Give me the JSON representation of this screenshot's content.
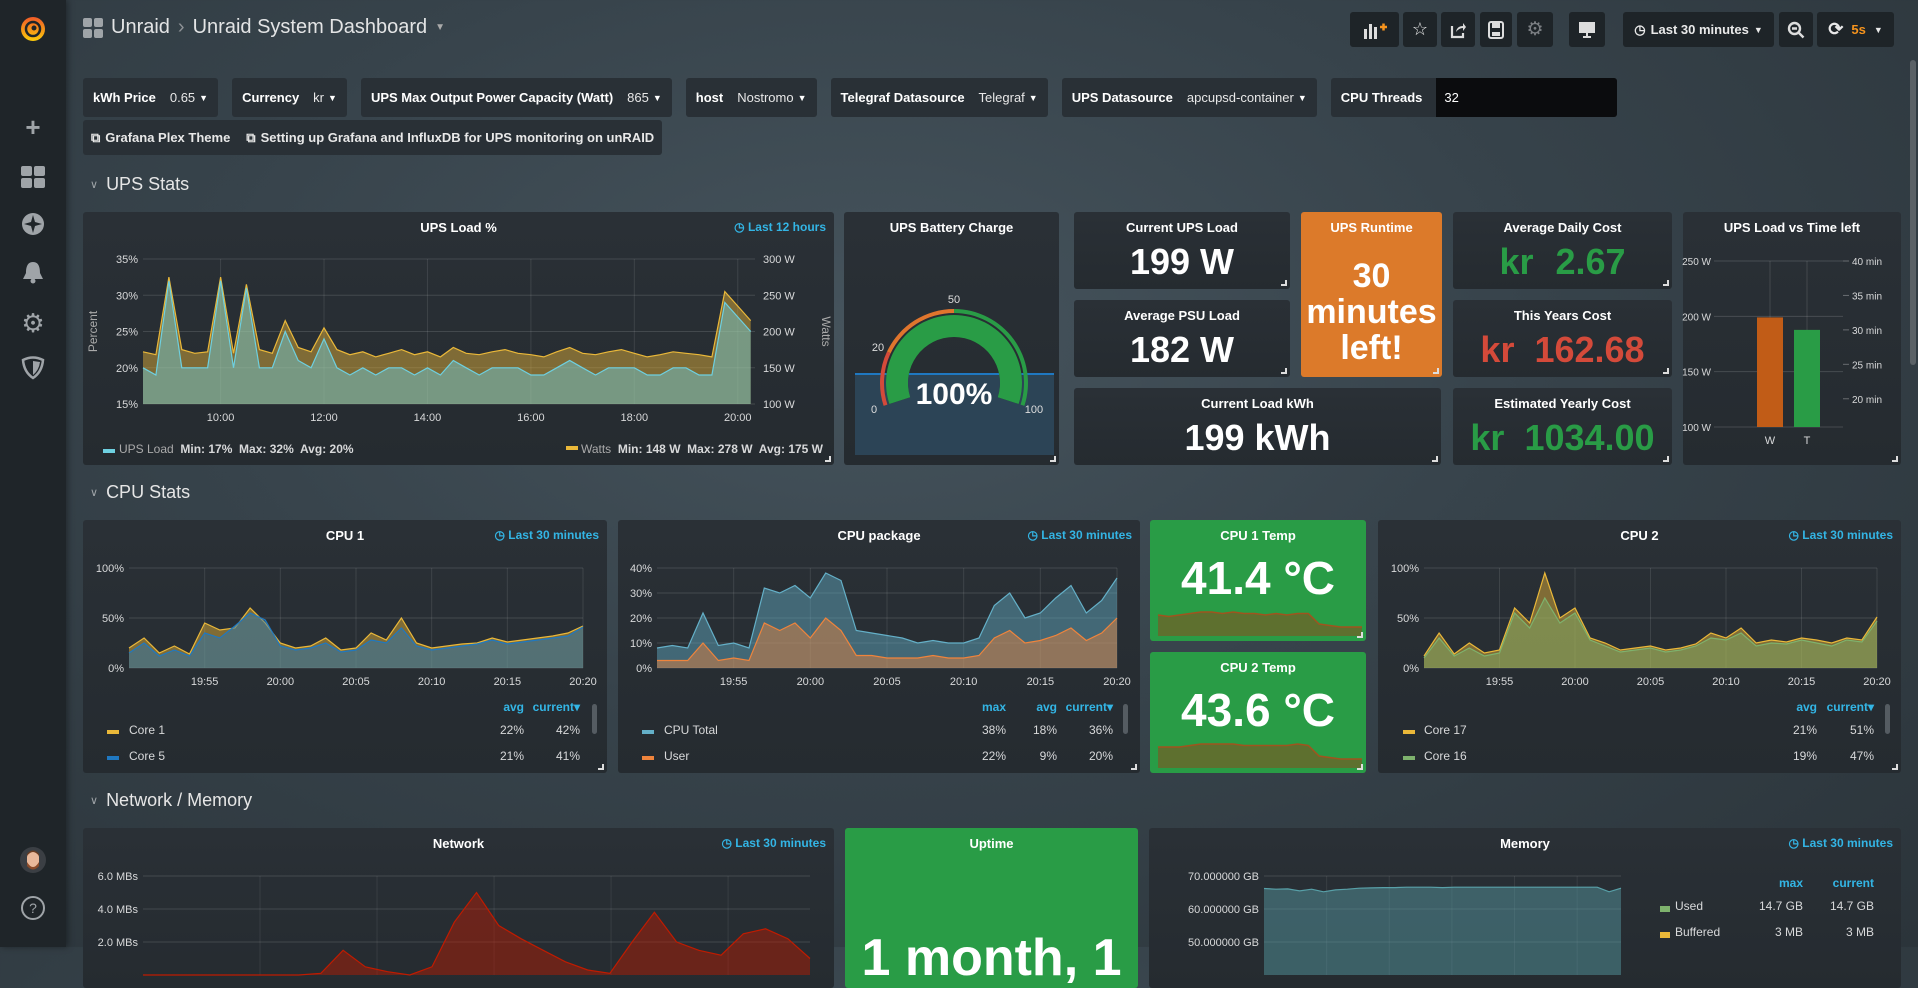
{
  "topbar": {
    "breadcrumb_parent": "Unraid",
    "separator": "›",
    "title": "Unraid System Dashboard",
    "time_range": "Last 30 minutes",
    "refresh_interval": "5s"
  },
  "icons": {
    "logo": "grafana-logo",
    "add": "plus-icon",
    "dashboards": "grid-icon",
    "explore": "compass-icon",
    "alerting": "bell-icon",
    "configuration": "gear-icon",
    "server_admin": "shield-icon",
    "help": "help-icon"
  },
  "variables": [
    {
      "label": "kWh Price",
      "value": "0.65"
    },
    {
      "label": "Currency",
      "value": "kr"
    },
    {
      "label": "UPS Max Output Power Capacity (Watt)",
      "value": "865"
    },
    {
      "label": "host",
      "value": "Nostromo"
    },
    {
      "label": "Telegraf Datasource",
      "value": "Telegraf"
    },
    {
      "label": "UPS Datasource",
      "value": "apcupsd-container"
    },
    {
      "label": "CPU Threads",
      "value": "32"
    }
  ],
  "links": [
    "Grafana Plex Theme",
    "Setting up Grafana and InfluxDB for UPS monitoring on unRAID"
  ],
  "rows": [
    "UPS Stats",
    "CPU Stats",
    "Network / Memory"
  ],
  "colors": {
    "green": "#299c46",
    "red": "#d44a3a",
    "orange": "#e0752d",
    "blue": "#33b5e5"
  },
  "panels": {
    "ups_load": {
      "title": "UPS Load %",
      "time": "Last 12 hours",
      "legend": [
        {
          "name": "UPS Load",
          "stats": "Min: 17%  Max: 32%  Avg: 20%"
        },
        {
          "name": "Watts",
          "stats": "Min: 148 W  Max: 278 W  Avg: 175 W"
        }
      ]
    },
    "battery": {
      "title": "UPS Battery Charge",
      "value": "100%",
      "percent": 100,
      "scale_labels": [
        "0",
        "20",
        "50",
        "100"
      ]
    },
    "current_ups_load": {
      "title": "Current UPS Load",
      "value": "199 W"
    },
    "avg_psu_load": {
      "title": "Average PSU Load",
      "value": "182 W"
    },
    "current_load_kwh": {
      "title": "Current Load kWh",
      "value": "199 kWh"
    },
    "ups_runtime": {
      "title": "UPS Runtime",
      "value_lines": [
        "30",
        "minutes",
        "left!"
      ]
    },
    "avg_daily_cost": {
      "title": "Average Daily Cost",
      "prefix": "kr",
      "value": "2.67"
    },
    "this_years_cost": {
      "title": "This Years Cost",
      "prefix": "kr",
      "value": "162.68"
    },
    "est_yearly_cost": {
      "title": "Estimated Yearly Cost",
      "prefix": "kr",
      "value": "1034.00"
    },
    "ups_load_vs_time": {
      "title": "UPS Load vs Time left"
    },
    "cpu1": {
      "title": "CPU 1",
      "time": "Last 30 minutes",
      "cols": [
        "avg",
        "current"
      ],
      "legend": [
        {
          "name": "Core 1",
          "color": "#eab839",
          "avg": "22%",
          "current": "42%"
        },
        {
          "name": "Core 5",
          "color": "#1f78c1",
          "avg": "21%",
          "current": "41%"
        }
      ]
    },
    "cpu_package": {
      "title": "CPU package",
      "time": "Last 30 minutes",
      "cols": [
        "max",
        "avg",
        "current"
      ],
      "legend": [
        {
          "name": "CPU Total",
          "color": "#64b0c8",
          "max": "38%",
          "avg": "18%",
          "current": "36%"
        },
        {
          "name": "User",
          "color": "#ef843c",
          "max": "22%",
          "avg": "9%",
          "current": "20%"
        }
      ]
    },
    "cpu1_temp": {
      "title": "CPU 1 Temp",
      "value": "41.4 °C",
      "sparkline": [
        44,
        43,
        44,
        45,
        46,
        46,
        45,
        46,
        45,
        45,
        44,
        45,
        44,
        45,
        45,
        38,
        37,
        36,
        36,
        36
      ]
    },
    "cpu2_temp": {
      "title": "CPU 2 Temp",
      "value": "43.6 °C",
      "sparkline": [
        44,
        44,
        44,
        45,
        46,
        46,
        46,
        46,
        45,
        45,
        45,
        45,
        45,
        46,
        45,
        38,
        37,
        36,
        36,
        36
      ]
    },
    "cpu2": {
      "title": "CPU 2",
      "time": "Last 30 minutes",
      "cols": [
        "avg",
        "current"
      ],
      "legend": [
        {
          "name": "Core 17",
          "color": "#eab839",
          "avg": "21%",
          "current": "51%"
        },
        {
          "name": "Core 16",
          "color": "#7eb26d",
          "avg": "19%",
          "current": "47%"
        }
      ]
    },
    "network": {
      "title": "Network",
      "time": "Last 30 minutes"
    },
    "uptime": {
      "title": "Uptime",
      "value": "1 month, 1"
    },
    "memory": {
      "title": "Memory",
      "time": "Last 30 minutes",
      "cols": [
        "max",
        "current"
      ],
      "legend": [
        {
          "name": "Used",
          "color": "#7eb26d",
          "max": "14.7 GB",
          "current": "14.7 GB"
        },
        {
          "name": "Buffered",
          "color": "#eab839",
          "max": "3 MB",
          "current": "3 MB"
        }
      ]
    }
  },
  "chart_data": [
    {
      "type": "area",
      "panel": "UPS Load %",
      "xlim": [
        "08:30",
        "20:20"
      ],
      "xticks": [
        "10:00",
        "12:00",
        "14:00",
        "16:00",
        "18:00",
        "20:00"
      ],
      "ylabel": "Percent",
      "ylim": [
        15,
        35
      ],
      "yticks": [
        15,
        20,
        25,
        30,
        35
      ],
      "ytick_labels": [
        "15%",
        "20%",
        "25%",
        "30%",
        "35%"
      ],
      "y2label": "Watts",
      "y2lim": [
        100,
        300
      ],
      "y2ticks": [
        100,
        150,
        200,
        250,
        300
      ],
      "y2tick_labels": [
        "100 W",
        "150 W",
        "200 W",
        "250 W",
        "300 W"
      ],
      "x": [
        "08:30",
        "08:45",
        "09:00",
        "09:15",
        "09:30",
        "09:45",
        "10:00",
        "10:15",
        "10:30",
        "10:45",
        "11:00",
        "11:15",
        "11:30",
        "11:45",
        "12:00",
        "12:15",
        "12:30",
        "12:45",
        "13:00",
        "13:15",
        "13:30",
        "13:45",
        "14:00",
        "14:15",
        "14:30",
        "14:45",
        "15:00",
        "15:15",
        "15:30",
        "15:45",
        "16:00",
        "16:15",
        "16:30",
        "16:45",
        "17:00",
        "17:15",
        "17:30",
        "17:45",
        "18:00",
        "18:15",
        "18:30",
        "18:45",
        "19:00",
        "19:15",
        "19:30",
        "19:45",
        "20:00",
        "20:15"
      ],
      "series": [
        {
          "name": "Watts",
          "axis": "right",
          "color": "#eab839",
          "values": [
            172,
            168,
            275,
            175,
            170,
            172,
            275,
            170,
            265,
            175,
            170,
            215,
            178,
            172,
            205,
            175,
            168,
            172,
            165,
            170,
            175,
            168,
            172,
            165,
            178,
            170,
            168,
            172,
            175,
            170,
            168,
            165,
            172,
            178,
            170,
            168,
            172,
            175,
            170,
            165,
            168,
            172,
            170,
            168,
            165,
            255,
            235,
            215
          ]
        },
        {
          "name": "UPS Load",
          "axis": "left",
          "color": "#6ed0e0",
          "values": [
            20,
            19,
            32,
            20,
            20,
            20,
            32,
            20,
            31,
            20,
            20,
            25,
            21,
            20,
            24,
            20,
            19,
            20,
            19,
            20,
            20,
            19,
            20,
            19,
            21,
            20,
            19,
            20,
            20,
            20,
            19,
            19,
            20,
            21,
            20,
            19,
            20,
            20,
            20,
            19,
            19,
            20,
            20,
            19,
            19,
            29,
            27,
            25
          ]
        }
      ]
    },
    {
      "type": "area",
      "panel": "CPU 1",
      "xlim": [
        "19:50",
        "20:20"
      ],
      "xticks": [
        "19:55",
        "20:00",
        "20:05",
        "20:10",
        "20:15",
        "20:20"
      ],
      "ylim": [
        0,
        100
      ],
      "yticks": [
        0,
        50,
        100
      ],
      "ytick_labels": [
        "0%",
        "50%",
        "100%"
      ],
      "x": [
        "19:50",
        "19:51",
        "19:52",
        "19:53",
        "19:54",
        "19:55",
        "19:56",
        "19:57",
        "19:58",
        "19:59",
        "20:00",
        "20:01",
        "20:02",
        "20:03",
        "20:04",
        "20:05",
        "20:06",
        "20:07",
        "20:08",
        "20:09",
        "20:10",
        "20:11",
        "20:12",
        "20:13",
        "20:14",
        "20:15",
        "20:16",
        "20:17",
        "20:18",
        "20:19",
        "20:20"
      ],
      "series": [
        {
          "name": "Core 1",
          "color": "#eab839",
          "values": [
            20,
            30,
            15,
            22,
            14,
            45,
            38,
            40,
            60,
            45,
            25,
            20,
            22,
            30,
            18,
            20,
            35,
            28,
            50,
            25,
            20,
            22,
            24,
            25,
            30,
            26,
            28,
            30,
            32,
            35,
            42
          ]
        },
        {
          "name": "Core 5",
          "color": "#1f78c1",
          "values": [
            15,
            25,
            12,
            18,
            12,
            35,
            30,
            42,
            55,
            48,
            22,
            18,
            20,
            25,
            16,
            18,
            28,
            25,
            40,
            22,
            18,
            20,
            22,
            24,
            28,
            24,
            26,
            28,
            30,
            32,
            41
          ]
        }
      ]
    },
    {
      "type": "area",
      "panel": "CPU package",
      "xlim": [
        "19:50",
        "20:20"
      ],
      "xticks": [
        "19:55",
        "20:00",
        "20:05",
        "20:10",
        "20:15",
        "20:20"
      ],
      "ylim": [
        0,
        40
      ],
      "yticks": [
        0,
        10,
        20,
        30,
        40
      ],
      "ytick_labels": [
        "0%",
        "10%",
        "20%",
        "30%",
        "40%"
      ],
      "x": [
        "19:50",
        "19:51",
        "19:52",
        "19:53",
        "19:54",
        "19:55",
        "19:56",
        "19:57",
        "19:58",
        "19:59",
        "20:00",
        "20:01",
        "20:02",
        "20:03",
        "20:04",
        "20:05",
        "20:06",
        "20:07",
        "20:08",
        "20:09",
        "20:10",
        "20:11",
        "20:12",
        "20:13",
        "20:14",
        "20:15",
        "20:16",
        "20:17",
        "20:18",
        "20:19",
        "20:20"
      ],
      "series": [
        {
          "name": "CPU Total",
          "color": "#64b0c8",
          "values": [
            8,
            9,
            8,
            22,
            9,
            10,
            8,
            32,
            30,
            33,
            28,
            38,
            35,
            15,
            14,
            13,
            12,
            10,
            11,
            10,
            10,
            12,
            25,
            30,
            20,
            22,
            28,
            33,
            22,
            27,
            36
          ]
        },
        {
          "name": "User",
          "color": "#ef843c",
          "values": [
            3,
            3,
            3,
            10,
            3,
            4,
            3,
            18,
            15,
            18,
            12,
            20,
            15,
            5,
            5,
            4,
            4,
            4,
            5,
            4,
            4,
            5,
            12,
            15,
            10,
            11,
            13,
            16,
            11,
            14,
            20
          ]
        }
      ]
    },
    {
      "type": "area",
      "panel": "CPU 2",
      "xlim": [
        "19:50",
        "20:20"
      ],
      "xticks": [
        "19:55",
        "20:00",
        "20:05",
        "20:10",
        "20:15",
        "20:20"
      ],
      "ylim": [
        0,
        100
      ],
      "yticks": [
        0,
        50,
        100
      ],
      "ytick_labels": [
        "0%",
        "50%",
        "100%"
      ],
      "x": [
        "19:50",
        "19:51",
        "19:52",
        "19:53",
        "19:54",
        "19:55",
        "19:56",
        "19:57",
        "19:58",
        "19:59",
        "20:00",
        "20:01",
        "20:02",
        "20:03",
        "20:04",
        "20:05",
        "20:06",
        "20:07",
        "20:08",
        "20:09",
        "20:10",
        "20:11",
        "20:12",
        "20:13",
        "20:14",
        "20:15",
        "20:16",
        "20:17",
        "20:18",
        "20:19",
        "20:20"
      ],
      "series": [
        {
          "name": "Core 17",
          "color": "#eab839",
          "values": [
            12,
            35,
            14,
            25,
            15,
            18,
            60,
            45,
            95,
            50,
            60,
            30,
            25,
            18,
            20,
            22,
            18,
            20,
            24,
            35,
            30,
            40,
            25,
            28,
            26,
            30,
            28,
            25,
            30,
            28,
            51
          ]
        },
        {
          "name": "Core 16",
          "color": "#7eb26d",
          "values": [
            10,
            30,
            12,
            20,
            12,
            15,
            55,
            40,
            70,
            45,
            55,
            28,
            22,
            16,
            18,
            20,
            16,
            18,
            22,
            30,
            28,
            35,
            22,
            25,
            24,
            28,
            25,
            22,
            28,
            26,
            47
          ]
        }
      ]
    },
    {
      "type": "area",
      "panel": "Network",
      "xlim": [
        "19:50",
        "20:20"
      ],
      "xticks": [],
      "ylim": [
        0,
        6
      ],
      "yticks": [
        2,
        4,
        6
      ],
      "ytick_labels": [
        "2.0 MBs",
        "4.0 MBs",
        "6.0 MBs"
      ],
      "x": [
        "19:50",
        "19:51",
        "19:52",
        "19:53",
        "19:54",
        "19:55",
        "19:56",
        "19:57",
        "19:58",
        "19:59",
        "20:00",
        "20:01",
        "20:02",
        "20:03",
        "20:04",
        "20:05",
        "20:06",
        "20:07",
        "20:08",
        "20:09",
        "20:10",
        "20:11",
        "20:12",
        "20:13",
        "20:14",
        "20:15",
        "20:16",
        "20:17",
        "20:18",
        "20:19",
        "20:20"
      ],
      "series": [
        {
          "color": "#bf1b00",
          "values": [
            0,
            0,
            0,
            0,
            0,
            0,
            0,
            0,
            0.1,
            1.5,
            0.5,
            0.2,
            0,
            0.5,
            3.2,
            5.0,
            3.0,
            2.2,
            1.5,
            0.8,
            0.3,
            0.1,
            2.0,
            3.8,
            2.0,
            1.5,
            1.2,
            2.5,
            2.8,
            2.2,
            1.0
          ]
        }
      ]
    },
    {
      "type": "area",
      "panel": "Memory",
      "xlim": [
        "19:50",
        "20:20"
      ],
      "xticks": [],
      "ylim": [
        40,
        70
      ],
      "yticks": [
        50,
        60,
        70
      ],
      "ytick_labels": [
        "50.000000 GB",
        "60.000000 GB",
        "70.000000 GB"
      ],
      "x": [
        "19:50",
        "19:51",
        "19:52",
        "19:53",
        "19:54",
        "19:55",
        "19:56",
        "19:57",
        "19:58",
        "19:59",
        "20:00",
        "20:01",
        "20:02",
        "20:03",
        "20:04",
        "20:05",
        "20:06",
        "20:07",
        "20:08",
        "20:09",
        "20:10",
        "20:11",
        "20:12",
        "20:13",
        "20:14",
        "20:15",
        "20:16",
        "20:17",
        "20:18",
        "20:19",
        "20:20"
      ],
      "series": [
        {
          "name": "Used",
          "color": "#58a0a8",
          "values": [
            66.2,
            66,
            66.1,
            65.5,
            66,
            65.2,
            65.8,
            66,
            66.3,
            66.4,
            66.5,
            66.5,
            66.6,
            66.6,
            66.6,
            66.5,
            66.6,
            66.6,
            66.6,
            66.6,
            66.6,
            66.6,
            66.6,
            66.6,
            66.6,
            66.6,
            66.6,
            66.6,
            66.6,
            65.2,
            66.3
          ]
        }
      ]
    },
    {
      "type": "bar",
      "panel": "UPS Load vs Time left",
      "categories": [
        "W",
        "T"
      ],
      "values": [
        199,
        30
      ],
      "units": [
        "W",
        "min"
      ],
      "colors": [
        "#c15c17",
        "#299c46"
      ],
      "ylim": [
        100,
        250
      ],
      "yticks": [
        100,
        150,
        200,
        250
      ],
      "ytick_labels": [
        "100 W",
        "150 W",
        "200 W",
        "250 W"
      ],
      "y2lim": [
        15.9,
        40
      ],
      "y2ticks": [
        20,
        25,
        30,
        35,
        40
      ],
      "y2tick_labels": [
        "20 min",
        "25 min",
        "30 min",
        "35 min",
        "40 min"
      ]
    }
  ]
}
